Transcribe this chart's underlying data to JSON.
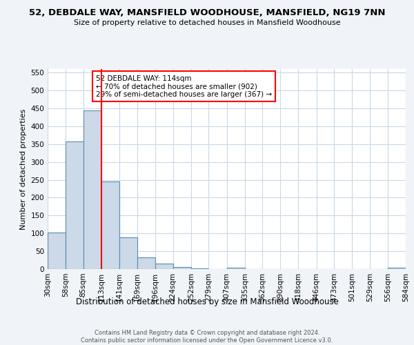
{
  "title": "52, DEBDALE WAY, MANSFIELD WOODHOUSE, MANSFIELD, NG19 7NN",
  "subtitle": "Size of property relative to detached houses in Mansfield Woodhouse",
  "xlabel": "Distribution of detached houses by size in Mansfield Woodhouse",
  "ylabel": "Number of detached properties",
  "bin_edges": [
    30,
    58,
    85,
    113,
    141,
    169,
    196,
    224,
    252,
    279,
    307,
    335,
    362,
    390,
    418,
    446,
    473,
    501,
    529,
    556,
    584
  ],
  "bin_counts": [
    103,
    357,
    445,
    246,
    89,
    32,
    15,
    5,
    2,
    0,
    3,
    0,
    0,
    0,
    0,
    0,
    0,
    0,
    0,
    3
  ],
  "bar_color": "#ccd9e8",
  "bar_edge_color": "#5a8ab0",
  "property_line_x": 113,
  "property_line_color": "red",
  "annotation_line1": "52 DEBDALE WAY: 114sqm",
  "annotation_line2": "← 70% of detached houses are smaller (902)",
  "annotation_line3": "29% of semi-detached houses are larger (367) →",
  "annotation_box_color": "white",
  "annotation_box_edge_color": "red",
  "ylim": [
    0,
    560
  ],
  "yticks": [
    0,
    50,
    100,
    150,
    200,
    250,
    300,
    350,
    400,
    450,
    500,
    550
  ],
  "tick_labels": [
    "30sqm",
    "58sqm",
    "85sqm",
    "113sqm",
    "141sqm",
    "169sqm",
    "196sqm",
    "224sqm",
    "252sqm",
    "279sqm",
    "307sqm",
    "335sqm",
    "362sqm",
    "390sqm",
    "418sqm",
    "446sqm",
    "473sqm",
    "501sqm",
    "529sqm",
    "556sqm",
    "584sqm"
  ],
  "footer_text": "Contains HM Land Registry data © Crown copyright and database right 2024.\nContains public sector information licensed under the Open Government Licence v3.0.",
  "background_color": "#f0f4f8",
  "plot_background_color": "white",
  "grid_color": "#c8d8e8"
}
